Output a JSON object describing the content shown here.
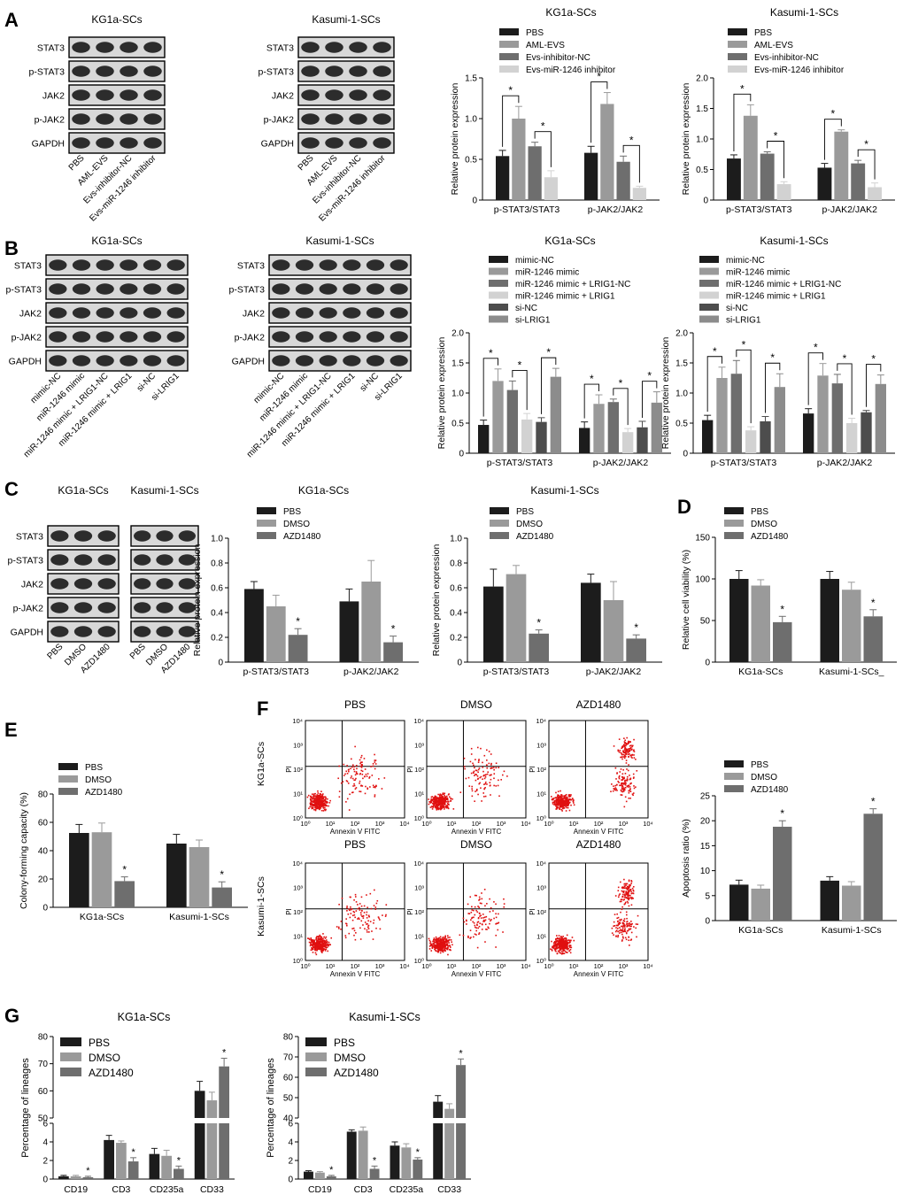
{
  "panels": [
    {
      "id": "A",
      "label": "A"
    },
    {
      "id": "B",
      "label": "B"
    },
    {
      "id": "C",
      "label": "C"
    },
    {
      "id": "D",
      "label": "D"
    },
    {
      "id": "E",
      "label": "E"
    },
    {
      "id": "F",
      "label": "F"
    },
    {
      "id": "G",
      "label": "G"
    }
  ],
  "colors": {
    "c1": "#1c1c1c",
    "c2": "#9a9a9a",
    "c3": "#6e6e6e",
    "c4": "#d2d2d2",
    "c5": "#4d4d4d",
    "c6": "#8c8c8c",
    "dot": "#e01010",
    "blot_bg": "#d8d8d8",
    "band": "#1a1a1a"
  },
  "blots": [
    {
      "title": "KG1a-SCs",
      "rows": [
        "STAT3",
        "p-STAT3",
        "JAK2",
        "p-JAK2",
        "GAPDH"
      ],
      "lanes": [
        "PBS",
        "AML-EVS",
        "Evs-inhibitor-NC",
        "Evs-miR-1246 inhibitor"
      ]
    },
    {
      "title": "Kasumi-1-SCs",
      "rows": [
        "STAT3",
        "p-STAT3",
        "JAK2",
        "p-JAK2",
        "GAPDH"
      ],
      "lanes": [
        "PBS",
        "AML-EVS",
        "Evs-inhibitor-NC",
        "Evs-miR-1246 inhibitor"
      ]
    },
    {
      "title": "KG1a-SCs",
      "rows": [
        "STAT3",
        "p-STAT3",
        "JAK2",
        "p-JAK2",
        "GAPDH"
      ],
      "lanes": [
        "mimic-NC",
        "miR-1246 mimic",
        "miR-1246 mimic + LRIG1-NC",
        "miR-1246 mimic + LRIG1",
        "si-NC",
        "si-LRIG1"
      ]
    },
    {
      "title": "Kasumi-1-SCs",
      "rows": [
        "STAT3",
        "p-STAT3",
        "JAK2",
        "p-JAK2",
        "GAPDH"
      ],
      "lanes": [
        "mimic-NC",
        "miR-1246 mimic",
        "miR-1246 mimic + LRIG1-NC",
        "miR-1246 mimic + LRIG1",
        "si-NC",
        "si-LRIG1"
      ]
    },
    {
      "title": "KG1a-SCs",
      "rows": [
        "STAT3",
        "p-STAT3",
        "JAK2",
        "p-JAK2",
        "GAPDH"
      ],
      "lanes": [
        "PBS",
        "DMSO",
        "AZD1480"
      ]
    },
    {
      "title": "Kasumi-1-SCs",
      "rows": [],
      "lanes": [
        "PBS",
        "DMSO",
        "AZD1480"
      ]
    }
  ],
  "chart_data": [
    {
      "panel": "A",
      "type": "bar",
      "title": "KG1a-SCs",
      "ylabel": "Relative protein expression",
      "ylim": [
        0,
        1.5
      ],
      "yticks": [
        "0",
        "0.5",
        "1.0",
        "1.5"
      ],
      "categories": [
        "p-STAT3/STAT3",
        "p-JAK2/JAK2"
      ],
      "series": [
        {
          "name": "PBS",
          "values": [
            0.54,
            0.58
          ],
          "errors": [
            0.07,
            0.08
          ]
        },
        {
          "name": "AML-EVS",
          "values": [
            1.0,
            1.18
          ],
          "errors": [
            0.15,
            0.14
          ]
        },
        {
          "name": "Evs-inhibitor-NC",
          "values": [
            0.66,
            0.47
          ],
          "errors": [
            0.05,
            0.07
          ]
        },
        {
          "name": "Evs-miR-1246 inhibitor",
          "values": [
            0.28,
            0.15
          ],
          "errors": [
            0.08,
            0.02
          ]
        }
      ],
      "significance": [
        [
          "*",
          0,
          0,
          1
        ],
        [
          "*",
          0,
          2,
          3
        ],
        [
          "*",
          1,
          0,
          1
        ],
        [
          "*",
          1,
          2,
          3
        ]
      ]
    },
    {
      "panel": "A",
      "type": "bar",
      "title": "Kasumi-1-SCs",
      "ylabel": "Relative protein expression",
      "ylim": [
        0,
        2.0
      ],
      "yticks": [
        "0",
        "0.5",
        "1.0",
        "1.5",
        "2.0"
      ],
      "categories": [
        "p-STAT3/STAT3",
        "p-JAK2/JAK2"
      ],
      "series": [
        {
          "name": "PBS",
          "values": [
            0.68,
            0.53
          ],
          "errors": [
            0.06,
            0.07
          ]
        },
        {
          "name": "AML-EVS",
          "values": [
            1.38,
            1.12
          ],
          "errors": [
            0.18,
            0.03
          ]
        },
        {
          "name": "Evs-inhibitor-NC",
          "values": [
            0.76,
            0.6
          ],
          "errors": [
            0.03,
            0.05
          ]
        },
        {
          "name": "Evs-miR-1246 inhibitor",
          "values": [
            0.26,
            0.21
          ],
          "errors": [
            0.04,
            0.07
          ]
        }
      ],
      "significance": [
        [
          "*",
          0,
          0,
          1
        ],
        [
          "*",
          0,
          2,
          3
        ],
        [
          "*",
          1,
          0,
          1
        ],
        [
          "*",
          1,
          2,
          3
        ]
      ]
    },
    {
      "panel": "B",
      "type": "bar",
      "title": "KG1a-SCs",
      "ylabel": "Relative protein expression",
      "ylim": [
        0,
        2.0
      ],
      "yticks": [
        "0",
        "0.5",
        "1.0",
        "1.5",
        "2.0"
      ],
      "categories": [
        "p-STAT3/STAT3",
        "p-JAK2/JAK2"
      ],
      "series": [
        {
          "name": "mimic-NC",
          "values": [
            0.47,
            0.42
          ],
          "errors": [
            0.08,
            0.1
          ]
        },
        {
          "name": "miR-1246 mimic",
          "values": [
            1.2,
            0.82
          ],
          "errors": [
            0.2,
            0.15
          ]
        },
        {
          "name": "miR-1246 mimic + LRIG1-NC",
          "values": [
            1.05,
            0.85
          ],
          "errors": [
            0.15,
            0.05
          ]
        },
        {
          "name": "miR-1246 mimic + LRIG1",
          "values": [
            0.56,
            0.35
          ],
          "errors": [
            0.1,
            0.06
          ]
        },
        {
          "name": "si-NC",
          "values": [
            0.52,
            0.43
          ],
          "errors": [
            0.07,
            0.1
          ]
        },
        {
          "name": "si-LRIG1",
          "values": [
            1.27,
            0.84
          ],
          "errors": [
            0.14,
            0.18
          ]
        }
      ],
      "significance": [
        [
          "*",
          0,
          0,
          1
        ],
        [
          "*",
          0,
          2,
          3
        ],
        [
          "*",
          0,
          4,
          5
        ],
        [
          "*",
          1,
          0,
          1
        ],
        [
          "*",
          1,
          2,
          3
        ],
        [
          "*",
          1,
          4,
          5
        ]
      ]
    },
    {
      "panel": "B",
      "type": "bar",
      "title": "Kasumi-1-SCs",
      "ylabel": "Relative protein expression",
      "ylim": [
        0,
        2.0
      ],
      "yticks": [
        "0",
        "0.5",
        "1.0",
        "1.5",
        "2.0"
      ],
      "categories": [
        "p-STAT3/STAT3",
        "p-JAK2/JAK2"
      ],
      "series": [
        {
          "name": "mimic-NC",
          "values": [
            0.55,
            0.66
          ],
          "errors": [
            0.08,
            0.08
          ]
        },
        {
          "name": "miR-1246 mimic",
          "values": [
            1.25,
            1.29
          ],
          "errors": [
            0.18,
            0.2
          ]
        },
        {
          "name": "miR-1246 mimic + LRIG1-NC",
          "values": [
            1.32,
            1.16
          ],
          "errors": [
            0.22,
            0.15
          ]
        },
        {
          "name": "miR-1246 mimic + LRIG1",
          "values": [
            0.38,
            0.5
          ],
          "errors": [
            0.06,
            0.08
          ]
        },
        {
          "name": "si-NC",
          "values": [
            0.53,
            0.68
          ],
          "errors": [
            0.08,
            0.03
          ]
        },
        {
          "name": "si-LRIG1",
          "values": [
            1.1,
            1.15
          ],
          "errors": [
            0.22,
            0.15
          ]
        }
      ],
      "significance": [
        [
          "*",
          0,
          0,
          1
        ],
        [
          "*",
          0,
          2,
          3
        ],
        [
          "*",
          0,
          4,
          5
        ],
        [
          "*",
          1,
          0,
          1
        ],
        [
          "*",
          1,
          2,
          3
        ],
        [
          "*",
          1,
          4,
          5
        ]
      ]
    },
    {
      "panel": "C",
      "type": "bar",
      "title": "KG1a-SCs",
      "ylabel": "Relative protein expression",
      "ylim": [
        0,
        1.0
      ],
      "yticks": [
        "0",
        "0.2",
        "0.4",
        "0.6",
        "0.8",
        "1.0"
      ],
      "categories": [
        "p-STAT3/STAT3",
        "p-JAK2/JAK2"
      ],
      "series": [
        {
          "name": "PBS",
          "values": [
            0.59,
            0.49
          ],
          "errors": [
            0.06,
            0.1
          ]
        },
        {
          "name": "DMSO",
          "values": [
            0.45,
            0.65
          ],
          "errors": [
            0.09,
            0.17
          ]
        },
        {
          "name": "AZD1480",
          "values": [
            0.22,
            0.16
          ],
          "errors": [
            0.05,
            0.05
          ]
        }
      ],
      "marks": [
        [
          "*",
          0,
          2
        ],
        [
          "*",
          1,
          2
        ]
      ]
    },
    {
      "panel": "C",
      "type": "bar",
      "title": "Kasumi-1-SCs",
      "ylabel": "Relative protein expression",
      "ylim": [
        0,
        1.0
      ],
      "yticks": [
        "0",
        "0.2",
        "0.4",
        "0.6",
        "0.8",
        "1.0"
      ],
      "categories": [
        "p-STAT3/STAT3",
        "p-JAK2/JAK2"
      ],
      "series": [
        {
          "name": "PBS",
          "values": [
            0.61,
            0.64
          ],
          "errors": [
            0.14,
            0.07
          ]
        },
        {
          "name": "DMSO",
          "values": [
            0.71,
            0.5
          ],
          "errors": [
            0.07,
            0.15
          ]
        },
        {
          "name": "AZD1480",
          "values": [
            0.23,
            0.19
          ],
          "errors": [
            0.03,
            0.03
          ]
        }
      ],
      "marks": [
        [
          "*",
          0,
          2
        ],
        [
          "*",
          1,
          2
        ]
      ]
    },
    {
      "panel": "D",
      "type": "bar",
      "title": "",
      "ylabel": "Relative cell viability (%)",
      "ylim": [
        0,
        150
      ],
      "yticks": [
        "0",
        "50",
        "100",
        "150"
      ],
      "categories": [
        "KG1a-SCs",
        "Kasumi-1-SCs_"
      ],
      "series": [
        {
          "name": "PBS",
          "values": [
            100,
            100
          ],
          "errors": [
            10,
            9
          ]
        },
        {
          "name": "DMSO",
          "values": [
            92,
            87
          ],
          "errors": [
            7,
            9
          ]
        },
        {
          "name": "AZD1480",
          "values": [
            48,
            55
          ],
          "errors": [
            7,
            8
          ]
        }
      ],
      "marks": [
        [
          "*",
          0,
          2
        ],
        [
          "*",
          1,
          2
        ]
      ]
    },
    {
      "panel": "E",
      "type": "bar",
      "title": "",
      "ylabel": "Colony-forming capacity (%)",
      "ylim": [
        0,
        80
      ],
      "yticks": [
        "0",
        "20",
        "40",
        "60",
        "80"
      ],
      "categories": [
        "KG1a-SCs",
        "Kasumi-1-SCs"
      ],
      "series": [
        {
          "name": "PBS",
          "values": [
            52.5,
            45
          ],
          "errors": [
            6,
            6.5
          ]
        },
        {
          "name": "DMSO",
          "values": [
            53,
            42.5
          ],
          "errors": [
            6.5,
            5
          ]
        },
        {
          "name": "AZD1480",
          "values": [
            18.5,
            14
          ],
          "errors": [
            3,
            4
          ]
        }
      ],
      "marks": [
        [
          "*",
          0,
          2
        ],
        [
          "*",
          1,
          2
        ]
      ]
    },
    {
      "panel": "F",
      "type": "bar",
      "title": "",
      "ylabel": "Apoptosis ratio (%)",
      "ylim": [
        0,
        25
      ],
      "yticks": [
        "0",
        "5",
        "10",
        "15",
        "20",
        "25"
      ],
      "categories": [
        "KG1a-SCs",
        "Kasumi-1-SCs"
      ],
      "series": [
        {
          "name": "PBS",
          "values": [
            7.2,
            8.0
          ],
          "errors": [
            0.9,
            0.8
          ]
        },
        {
          "name": "DMSO",
          "values": [
            6.4,
            7.0
          ],
          "errors": [
            0.7,
            0.8
          ]
        },
        {
          "name": "AZD1480",
          "values": [
            18.8,
            21.4
          ],
          "errors": [
            1.2,
            1.0
          ]
        }
      ],
      "marks": [
        [
          "*",
          0,
          2
        ],
        [
          "*",
          1,
          2
        ]
      ]
    },
    {
      "panel": "G",
      "type": "bar",
      "title": "KG1a-SCs",
      "ylabel": "Percentage of lineages",
      "ylim_lower": [
        0,
        6
      ],
      "ylim_upper": [
        50,
        80
      ],
      "yticks_lower": [
        "0",
        "2",
        "4",
        "6"
      ],
      "yticks_upper": [
        "50",
        "60",
        "70",
        "80"
      ],
      "categories": [
        "CD19",
        "CD3",
        "CD235a",
        "CD33"
      ],
      "series": [
        {
          "name": "PBS",
          "values": [
            0.3,
            4.2,
            2.7,
            60
          ],
          "errors": [
            0.1,
            0.5,
            0.6,
            3.5
          ]
        },
        {
          "name": "DMSO",
          "values": [
            0.3,
            3.9,
            2.5,
            56.5
          ],
          "errors": [
            0.1,
            0.2,
            0.6,
            3
          ]
        },
        {
          "name": "AZD1480",
          "values": [
            0.2,
            1.9,
            1.1,
            69
          ],
          "errors": [
            0.1,
            0.4,
            0.3,
            3
          ]
        }
      ],
      "marks": [
        [
          "*",
          0,
          2
        ],
        [
          "*",
          1,
          2
        ],
        [
          "*",
          2,
          2
        ],
        [
          "*",
          3,
          2
        ]
      ]
    },
    {
      "panel": "G",
      "type": "bar",
      "title": "Kasumi-1-SCs",
      "ylabel": "Percentage of lineages",
      "ylim_lower": [
        0,
        6
      ],
      "ylim_upper": [
        40,
        80
      ],
      "yticks_lower": [
        "0",
        "2",
        "4",
        "6"
      ],
      "yticks_upper": [
        "40",
        "50",
        "60",
        "70",
        "80"
      ],
      "categories": [
        "CD19",
        "CD3",
        "CD235a",
        "CD33"
      ],
      "series": [
        {
          "name": "PBS",
          "values": [
            0.8,
            5.1,
            3.6,
            48
          ],
          "errors": [
            0.1,
            0.2,
            0.4,
            3
          ]
        },
        {
          "name": "DMSO",
          "values": [
            0.7,
            5.2,
            3.4,
            44.5
          ],
          "errors": [
            0.1,
            0.4,
            0.4,
            2.5
          ]
        },
        {
          "name": "AZD1480",
          "values": [
            0.3,
            1.1,
            2.1,
            66
          ],
          "errors": [
            0.1,
            0.3,
            0.2,
            3
          ]
        }
      ],
      "marks": [
        [
          "*",
          0,
          2
        ],
        [
          "*",
          1,
          2
        ],
        [
          "*",
          2,
          2
        ],
        [
          "*",
          3,
          2
        ]
      ]
    }
  ],
  "flow": {
    "columns": [
      "PBS",
      "DMSO",
      "AZD1480"
    ],
    "rows": [
      "KG1a-SCs",
      "Kasumi-1-SCs"
    ],
    "xlabel": "Annexin V FITC",
    "ylabel": "PI",
    "ticks": [
      "10⁰",
      "10¹",
      "10²",
      "10³",
      "10⁴"
    ]
  }
}
